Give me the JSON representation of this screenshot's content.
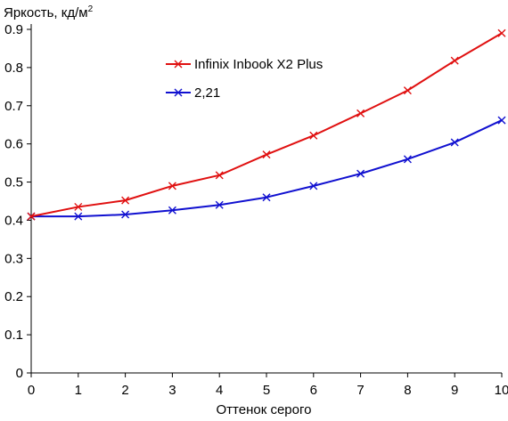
{
  "chart_data": {
    "type": "line",
    "title": "",
    "ylabel": "Яркость, кд/м",
    "ylabel_superscript": "2",
    "xlabel": "Оттенок серого",
    "xlim": [
      0,
      10
    ],
    "ylim": [
      0,
      0.9
    ],
    "x_ticks": [
      0,
      1,
      2,
      3,
      4,
      5,
      6,
      7,
      8,
      9,
      10
    ],
    "x_tick_labels": [
      "0",
      "1",
      "2",
      "3",
      "4",
      "5",
      "6",
      "7",
      "8",
      "9",
      "10"
    ],
    "y_ticks": [
      0,
      0.1,
      0.2,
      0.3,
      0.4,
      0.5,
      0.6,
      0.7,
      0.8,
      0.9
    ],
    "y_tick_labels": [
      "0",
      "0.1",
      "0.2",
      "0.3",
      "0.4",
      "0.5",
      "0.6",
      "0.7",
      "0.8",
      "0.9"
    ],
    "grid": false,
    "legend_position": "top-center",
    "x": [
      0,
      1,
      2,
      3,
      4,
      5,
      6,
      7,
      8,
      9,
      10
    ],
    "series": [
      {
        "name": "Infinix Inbook X2 Plus",
        "color": "#e01010",
        "marker": "x",
        "values": [
          0.41,
          0.435,
          0.452,
          0.49,
          0.518,
          0.572,
          0.622,
          0.68,
          0.74,
          0.818,
          0.89
        ]
      },
      {
        "name": "2,21",
        "color": "#1010d0",
        "marker": "x",
        "values": [
          0.41,
          0.41,
          0.415,
          0.426,
          0.44,
          0.46,
          0.49,
          0.522,
          0.56,
          0.604,
          0.662
        ]
      }
    ]
  }
}
